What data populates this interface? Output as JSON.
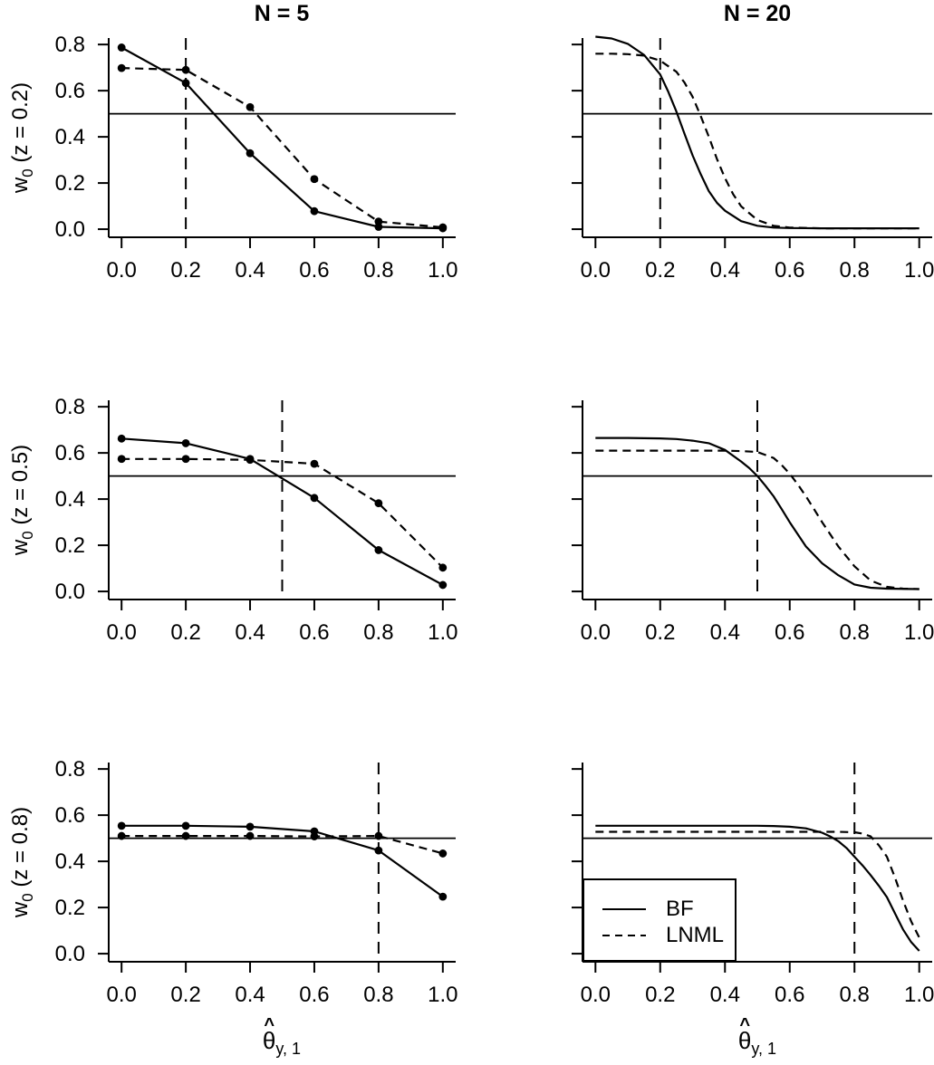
{
  "figure": {
    "background": "#ffffff",
    "line_color": "#000000",
    "columns": [
      {
        "title": "N = 5"
      },
      {
        "title": "N = 20"
      }
    ],
    "rows": [
      {
        "ylabel": {
          "base": "w",
          "sub": "0",
          "rest": " (z = 0.2)"
        }
      },
      {
        "ylabel": {
          "base": "w",
          "sub": "0",
          "rest": " (z = 0.5)"
        }
      },
      {
        "ylabel": {
          "base": "w",
          "sub": "0",
          "rest": " (z = 0.8)"
        }
      }
    ],
    "xlabel": {
      "symbol": "θ",
      "hat": "^",
      "sub": "y, 1"
    },
    "legend": {
      "position": "bottom-left of lower-right panel",
      "entries": [
        {
          "label": "BF",
          "line_style": "solid"
        },
        {
          "label": "LNML",
          "line_style": "dashed"
        }
      ]
    }
  },
  "chart_data": [
    {
      "id": "n5-z0.2",
      "type": "line",
      "grid": {
        "row": 0,
        "col": 0
      },
      "column_title": "N = 5",
      "row_label": "w0 (z = 0.2)",
      "xlim": [
        0,
        1
      ],
      "ylim": [
        0,
        0.8
      ],
      "xticks": {
        "values": [
          0,
          0.2,
          0.4,
          0.6,
          0.8,
          1.0
        ],
        "labels": [
          "0.0",
          "0.2",
          "0.4",
          "0.6",
          "0.8",
          "1.0"
        ]
      },
      "yticks": {
        "values": [
          0,
          0.2,
          0.4,
          0.6,
          0.8
        ],
        "labels": [
          "0.0",
          "0.2",
          "0.4",
          "0.6",
          "0.8"
        ],
        "labels_shown": true
      },
      "reference_lines": {
        "horizontal_y": 0.5,
        "vertical_x": 0.2
      },
      "series": [
        {
          "name": "BF",
          "line_style": "solid",
          "markers": true,
          "x": [
            0,
            0.2,
            0.4,
            0.6,
            0.8,
            1.0
          ],
          "y": [
            0.787,
            0.633,
            0.329,
            0.078,
            0.01,
            0.004
          ]
        },
        {
          "name": "LNML",
          "line_style": "dashed",
          "markers": true,
          "x": [
            0,
            0.2,
            0.4,
            0.6,
            0.8,
            1.0
          ],
          "y": [
            0.698,
            0.69,
            0.529,
            0.217,
            0.033,
            0.008
          ]
        }
      ]
    },
    {
      "id": "n20-z0.2",
      "type": "line",
      "grid": {
        "row": 0,
        "col": 1
      },
      "column_title": "N = 20",
      "row_label": "w0 (z = 0.2)",
      "xlim": [
        0,
        1
      ],
      "ylim": [
        0,
        0.8
      ],
      "xticks": {
        "values": [
          0,
          0.2,
          0.4,
          0.6,
          0.8,
          1.0
        ],
        "labels": [
          "0.0",
          "0.2",
          "0.4",
          "0.6",
          "0.8",
          "1.0"
        ]
      },
      "yticks": {
        "values": [
          0,
          0.2,
          0.4,
          0.6,
          0.8
        ],
        "labels": [],
        "labels_shown": false
      },
      "reference_lines": {
        "horizontal_y": 0.5,
        "vertical_x": 0.2
      },
      "series": [
        {
          "name": "BF",
          "line_style": "solid",
          "markers": false,
          "x": [
            0,
            0.05,
            0.1,
            0.15,
            0.2,
            0.225,
            0.25,
            0.275,
            0.3,
            0.325,
            0.35,
            0.375,
            0.4,
            0.45,
            0.5,
            0.55,
            0.6,
            0.7,
            0.8,
            0.9,
            1.0
          ],
          "y": [
            0.834,
            0.826,
            0.803,
            0.755,
            0.67,
            0.595,
            0.51,
            0.413,
            0.32,
            0.238,
            0.165,
            0.115,
            0.08,
            0.035,
            0.015,
            0.007,
            0.005,
            0.004,
            0.004,
            0.004,
            0.004
          ]
        },
        {
          "name": "LNML",
          "line_style": "dashed",
          "markers": false,
          "x": [
            0,
            0.05,
            0.1,
            0.15,
            0.2,
            0.25,
            0.275,
            0.3,
            0.325,
            0.35,
            0.375,
            0.4,
            0.425,
            0.45,
            0.5,
            0.55,
            0.6,
            0.7,
            0.8,
            0.9,
            1.0
          ],
          "y": [
            0.76,
            0.76,
            0.758,
            0.752,
            0.73,
            0.682,
            0.635,
            0.574,
            0.49,
            0.401,
            0.305,
            0.221,
            0.152,
            0.099,
            0.04,
            0.015,
            0.007,
            0.004,
            0.004,
            0.004,
            0.004
          ]
        }
      ]
    },
    {
      "id": "n5-z0.5",
      "type": "line",
      "grid": {
        "row": 1,
        "col": 0
      },
      "column_title": "N = 5",
      "row_label": "w0 (z = 0.5)",
      "xlim": [
        0,
        1
      ],
      "ylim": [
        0,
        0.8
      ],
      "xticks": {
        "values": [
          0,
          0.2,
          0.4,
          0.6,
          0.8,
          1.0
        ],
        "labels": [
          "0.0",
          "0.2",
          "0.4",
          "0.6",
          "0.8",
          "1.0"
        ]
      },
      "yticks": {
        "values": [
          0,
          0.2,
          0.4,
          0.6,
          0.8
        ],
        "labels": [
          "0.0",
          "0.2",
          "0.4",
          "0.6",
          "0.8"
        ],
        "labels_shown": true
      },
      "reference_lines": {
        "horizontal_y": 0.5,
        "vertical_x": 0.5
      },
      "series": [
        {
          "name": "BF",
          "line_style": "solid",
          "markers": true,
          "x": [
            0,
            0.2,
            0.4,
            0.6,
            0.8,
            1.0
          ],
          "y": [
            0.662,
            0.642,
            0.574,
            0.405,
            0.179,
            0.028
          ]
        },
        {
          "name": "LNML",
          "line_style": "dashed",
          "markers": true,
          "x": [
            0,
            0.2,
            0.4,
            0.6,
            0.8,
            1.0
          ],
          "y": [
            0.574,
            0.574,
            0.57,
            0.553,
            0.382,
            0.103
          ]
        }
      ]
    },
    {
      "id": "n20-z0.5",
      "type": "line",
      "grid": {
        "row": 1,
        "col": 1
      },
      "column_title": "N = 20",
      "row_label": "w0 (z = 0.5)",
      "xlim": [
        0,
        1
      ],
      "ylim": [
        0,
        0.8
      ],
      "xticks": {
        "values": [
          0,
          0.2,
          0.4,
          0.6,
          0.8,
          1.0
        ],
        "labels": [
          "0.0",
          "0.2",
          "0.4",
          "0.6",
          "0.8",
          "1.0"
        ]
      },
      "yticks": {
        "values": [
          0,
          0.2,
          0.4,
          0.6,
          0.8
        ],
        "labels": [],
        "labels_shown": false
      },
      "reference_lines": {
        "horizontal_y": 0.5,
        "vertical_x": 0.5
      },
      "series": [
        {
          "name": "BF",
          "line_style": "solid",
          "markers": false,
          "x": [
            0,
            0.1,
            0.2,
            0.25,
            0.3,
            0.35,
            0.4,
            0.45,
            0.475,
            0.5,
            0.525,
            0.55,
            0.575,
            0.6,
            0.65,
            0.7,
            0.75,
            0.8,
            0.85,
            0.9,
            1.0
          ],
          "y": [
            0.665,
            0.665,
            0.663,
            0.66,
            0.653,
            0.642,
            0.613,
            0.563,
            0.534,
            0.5,
            0.458,
            0.412,
            0.357,
            0.3,
            0.195,
            0.122,
            0.07,
            0.03,
            0.016,
            0.012,
            0.01
          ]
        },
        {
          "name": "LNML",
          "line_style": "dashed",
          "markers": false,
          "x": [
            0,
            0.1,
            0.2,
            0.3,
            0.4,
            0.45,
            0.5,
            0.55,
            0.575,
            0.6,
            0.625,
            0.65,
            0.675,
            0.7,
            0.75,
            0.8,
            0.85,
            0.9,
            0.95,
            1.0
          ],
          "y": [
            0.61,
            0.61,
            0.61,
            0.61,
            0.61,
            0.608,
            0.604,
            0.578,
            0.548,
            0.51,
            0.463,
            0.412,
            0.357,
            0.3,
            0.195,
            0.109,
            0.047,
            0.02,
            0.012,
            0.01
          ]
        }
      ]
    },
    {
      "id": "n5-z0.8",
      "type": "line",
      "grid": {
        "row": 2,
        "col": 0
      },
      "column_title": "N = 5",
      "row_label": "w0 (z = 0.8)",
      "xlim": [
        0,
        1
      ],
      "ylim": [
        0,
        0.8
      ],
      "xticks": {
        "values": [
          0,
          0.2,
          0.4,
          0.6,
          0.8,
          1.0
        ],
        "labels": [
          "0.0",
          "0.2",
          "0.4",
          "0.6",
          "0.8",
          "1.0"
        ]
      },
      "yticks": {
        "values": [
          0,
          0.2,
          0.4,
          0.6,
          0.8
        ],
        "labels": [
          "0.0",
          "0.2",
          "0.4",
          "0.6",
          "0.8"
        ],
        "labels_shown": true
      },
      "reference_lines": {
        "horizontal_y": 0.5,
        "vertical_x": 0.8
      },
      "series": [
        {
          "name": "BF",
          "line_style": "solid",
          "markers": true,
          "x": [
            0,
            0.2,
            0.4,
            0.6,
            0.8,
            1.0
          ],
          "y": [
            0.554,
            0.554,
            0.55,
            0.53,
            0.447,
            0.247
          ]
        },
        {
          "name": "LNML",
          "line_style": "dashed",
          "markers": true,
          "x": [
            0,
            0.2,
            0.4,
            0.6,
            0.8,
            1.0
          ],
          "y": [
            0.51,
            0.51,
            0.51,
            0.508,
            0.51,
            0.434
          ]
        }
      ]
    },
    {
      "id": "n20-z0.8",
      "type": "line",
      "grid": {
        "row": 2,
        "col": 1
      },
      "column_title": "N = 20",
      "row_label": "w0 (z = 0.8)",
      "xlim": [
        0,
        1
      ],
      "ylim": [
        0,
        0.8
      ],
      "xticks": {
        "values": [
          0,
          0.2,
          0.4,
          0.6,
          0.8,
          1.0
        ],
        "labels": [
          "0.0",
          "0.2",
          "0.4",
          "0.6",
          "0.8",
          "1.0"
        ]
      },
      "yticks": {
        "values": [
          0,
          0.2,
          0.4,
          0.6,
          0.8
        ],
        "labels": [],
        "labels_shown": false
      },
      "reference_lines": {
        "horizontal_y": 0.5,
        "vertical_x": 0.8
      },
      "series": [
        {
          "name": "BF",
          "line_style": "solid",
          "markers": false,
          "x": [
            0,
            0.1,
            0.2,
            0.3,
            0.4,
            0.5,
            0.55,
            0.6,
            0.65,
            0.7,
            0.725,
            0.75,
            0.775,
            0.8,
            0.825,
            0.85,
            0.875,
            0.9,
            0.925,
            0.95,
            0.975,
            1.0
          ],
          "y": [
            0.554,
            0.554,
            0.554,
            0.554,
            0.554,
            0.554,
            0.553,
            0.55,
            0.543,
            0.524,
            0.508,
            0.487,
            0.458,
            0.42,
            0.382,
            0.34,
            0.295,
            0.245,
            0.175,
            0.105,
            0.05,
            0.012
          ]
        },
        {
          "name": "LNML",
          "line_style": "dashed",
          "markers": false,
          "x": [
            0,
            0.1,
            0.2,
            0.3,
            0.4,
            0.5,
            0.6,
            0.7,
            0.75,
            0.8,
            0.825,
            0.85,
            0.875,
            0.9,
            0.925,
            0.95,
            0.975,
            1.0
          ],
          "y": [
            0.528,
            0.528,
            0.528,
            0.528,
            0.528,
            0.528,
            0.528,
            0.528,
            0.528,
            0.526,
            0.52,
            0.508,
            0.47,
            0.42,
            0.33,
            0.23,
            0.14,
            0.07
          ]
        }
      ]
    }
  ]
}
